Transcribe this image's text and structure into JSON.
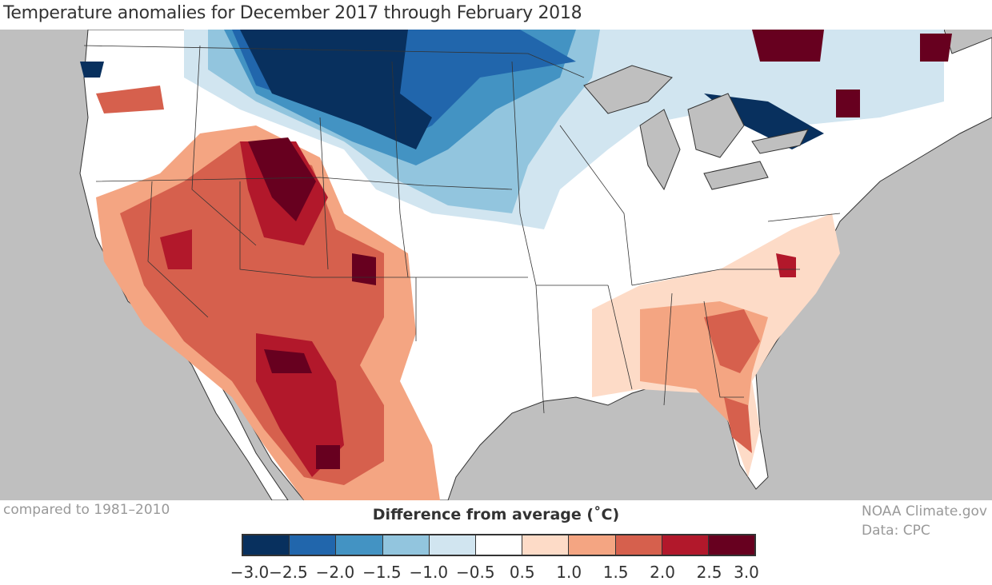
{
  "title": "Temperature anomalies for December 2017 through February 2018",
  "baseline_note": "compared to 1981–2010",
  "credit": {
    "line1": "NOAA Climate.gov",
    "line2": "Data: CPC"
  },
  "legend": {
    "title": "Difference from average (˚C)",
    "ticks": [
      "−3.0",
      "−2.5",
      "−2.0",
      "−1.5",
      "−1.0",
      "−0.5",
      "0.5",
      "1.0",
      "1.5",
      "2.0",
      "2.5",
      "3.0"
    ],
    "bins": [
      {
        "range": "-3.0 to -2.5",
        "color": "#08305e"
      },
      {
        "range": "-2.5 to -2.0",
        "color": "#2166ac"
      },
      {
        "range": "-2.0 to -1.5",
        "color": "#4393c3"
      },
      {
        "range": "-1.5 to -1.0",
        "color": "#92c5de"
      },
      {
        "range": "-1.0 to -0.5",
        "color": "#d1e5f0"
      },
      {
        "range": "-0.5 to 0.5",
        "color": "#ffffff"
      },
      {
        "range": "0.5 to 1.0",
        "color": "#fddbc7"
      },
      {
        "range": "1.0 to 1.5",
        "color": "#f4a582"
      },
      {
        "range": "1.5 to 2.0",
        "color": "#d6604d"
      },
      {
        "range": "2.0 to 2.5",
        "color": "#b2182b"
      },
      {
        "range": "2.5 to 3.0",
        "color": "#67001f"
      }
    ]
  },
  "colors": {
    "ocean": "#bfbfbf",
    "land": "#ffffff",
    "border": "#333333"
  }
}
